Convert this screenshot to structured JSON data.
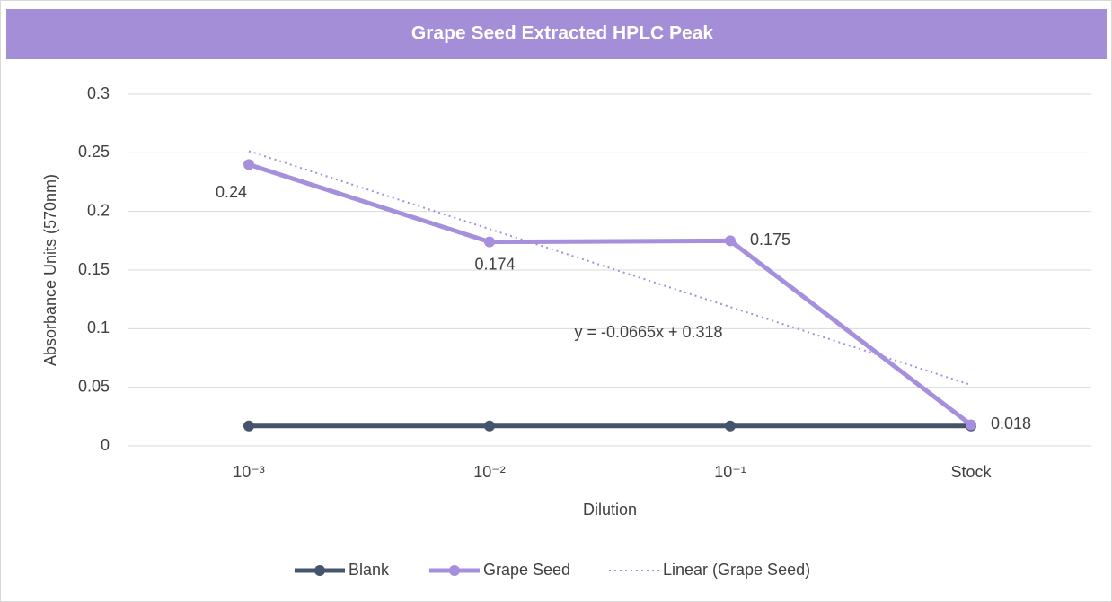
{
  "chart_data": {
    "type": "line",
    "title": "Grape Seed Extracted HPLC Peak",
    "x_label": "Dilution",
    "y_label": "Absorbance Units (570nm)",
    "categories": [
      "10⁻³",
      "10⁻²",
      "10⁻¹",
      "Stock"
    ],
    "series": [
      {
        "name": "Blank",
        "color": "#44546a",
        "style": "solid",
        "values": [
          0.017,
          0.017,
          0.017,
          0.017
        ]
      },
      {
        "name": "Grape Seed",
        "color": "#a68fdc",
        "style": "solid",
        "values": [
          0.24,
          0.174,
          0.175,
          0.018
        ],
        "data_labels": true
      },
      {
        "name": "Linear (Grape Seed)",
        "color": "#a68fdc",
        "style": "dotted",
        "values": [
          0.2515,
          0.185,
          0.1185,
          0.052
        ]
      }
    ],
    "annotation": "y = -0.0665x + 0.318",
    "ylim": [
      0,
      0.3
    ],
    "yticks": [
      0,
      0.05,
      0.1,
      0.15,
      0.2,
      0.25,
      0.3
    ],
    "grid": true,
    "legend": "bottom"
  }
}
